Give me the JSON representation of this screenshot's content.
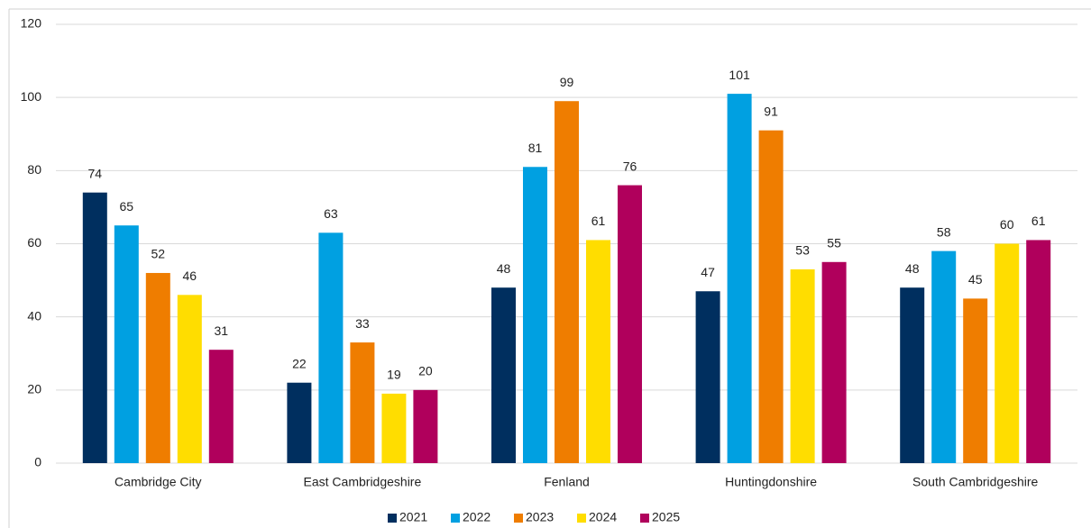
{
  "chart_data": {
    "type": "bar",
    "categories": [
      "Cambridge City",
      "East Cambridgeshire",
      "Fenland",
      "Huntingdonshire",
      "South Cambridgeshire"
    ],
    "series": [
      {
        "name": "2021",
        "color": "#002f5f",
        "values": [
          74,
          22,
          48,
          47,
          48
        ]
      },
      {
        "name": "2022",
        "color": "#00a0e1",
        "values": [
          65,
          63,
          81,
          101,
          58
        ]
      },
      {
        "name": "2023",
        "color": "#ef7d00",
        "values": [
          52,
          33,
          99,
          91,
          45
        ]
      },
      {
        "name": "2024",
        "color": "#ffdd00",
        "values": [
          46,
          19,
          61,
          53,
          60
        ]
      },
      {
        "name": "2025",
        "color": "#b0005c",
        "values": [
          31,
          20,
          76,
          55,
          61
        ]
      }
    ],
    "ylim": [
      0,
      120
    ],
    "yticks": [
      0,
      20,
      40,
      60,
      80,
      100,
      120
    ],
    "grid": true,
    "legend": "bottom"
  }
}
